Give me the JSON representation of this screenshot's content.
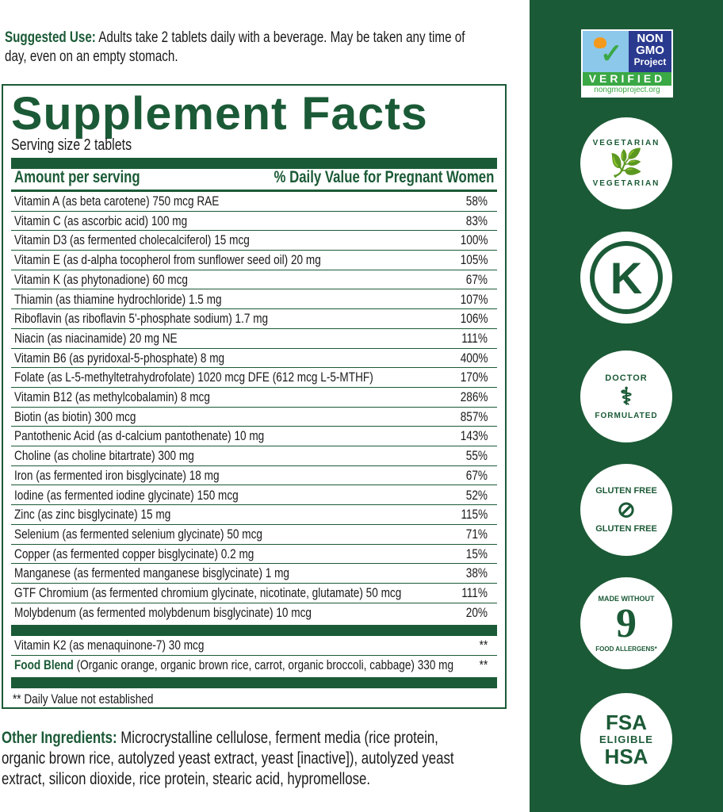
{
  "suggested_use": {
    "label": "Suggested Use:",
    "text1": "Adults take 2 tablets daily with a beverage. May be taken any time of",
    "text2": "day, even on an empty stomach."
  },
  "facts": {
    "title": "Supplement Facts",
    "serving": "Serving size 2 tablets",
    "col_amount": "Amount per serving",
    "col_dv": "% Daily Value for Pregnant Women",
    "rows": [
      [
        "Vitamin A (as beta carotene) 750 mcg RAE",
        "58%"
      ],
      [
        "Vitamin C (as ascorbic acid) 100 mg",
        "83%"
      ],
      [
        "Vitamin D3 (as fermented cholecalciferol) 15 mcg",
        "100%"
      ],
      [
        "Vitamin E (as d-alpha tocopherol from sunflower seed oil) 20 mg",
        "105%"
      ],
      [
        "Vitamin K (as phytonadione) 60 mcg",
        "67%"
      ],
      [
        "Thiamin (as thiamine hydrochloride) 1.5 mg",
        "107%"
      ],
      [
        "Riboflavin (as riboflavin 5'-phosphate sodium) 1.7 mg",
        "106%"
      ],
      [
        "Niacin (as niacinamide) 20 mg NE",
        "111%"
      ],
      [
        "Vitamin B6 (as pyridoxal-5-phosphate) 8 mg",
        "400%"
      ],
      [
        "Folate (as L-5-methyltetrahydrofolate) 1020 mcg DFE (612 mcg L-5-MTHF)",
        "170%"
      ],
      [
        "Vitamin B12 (as methylcobalamin) 8 mcg",
        "286%"
      ],
      [
        "Biotin (as biotin) 300 mcg",
        "857%"
      ],
      [
        "Pantothenic Acid (as d-calcium pantothenate) 10 mg",
        "143%"
      ],
      [
        "Choline (as choline bitartrate) 300 mg",
        "55%"
      ],
      [
        "Iron (as fermented iron bisglycinate) 18 mg",
        "67%"
      ],
      [
        "Iodine (as fermented iodine glycinate) 150 mcg",
        "52%"
      ],
      [
        "Zinc (as zinc bisglycinate) 15 mg",
        "115%"
      ],
      [
        "Selenium (as fermented selenium glycinate) 50 mcg",
        "71%"
      ],
      [
        "Copper (as fermented copper bisglycinate) 0.2 mg",
        "15%"
      ],
      [
        "Manganese (as fermented manganese bisglycinate) 1 mg",
        "38%"
      ],
      [
        "GTF Chromium (as fermented chromium glycinate, nicotinate, glutamate) 50 mcg",
        "111%"
      ],
      [
        "Molybdenum (as fermented molybdenum bisglycinate) 10 mcg",
        "20%"
      ]
    ],
    "k2": {
      "name": "Vitamin K2 (as menaquinone-7) 30 mcg",
      "dv": "**"
    },
    "blend": {
      "label": "Food Blend",
      "text": "(Organic orange, organic  brown rice, carrot, organic broccoli, cabbage) 330 mg",
      "dv": "**"
    },
    "footnote": "** Daily Value not established"
  },
  "other": {
    "label": "Other Ingredients:",
    "l1": "Microcrystalline cellulose, ferment media (rice protein,",
    "l2": "organic brown rice, autolyzed yeast extract, yeast  [inactive]), autolyzed yeast",
    "l3": "extract, silicon dioxide, rice protein, stearic acid, hypromellose."
  },
  "badges": {
    "gmo": {
      "l1": "NON",
      "l2": "GMO",
      "l3": "Project",
      "verified": "VERIFIED",
      "url": "nongmoproject.org"
    },
    "vegetarian": "VEGETARIAN",
    "kosher": "K",
    "doctor": [
      "DOCTOR",
      "FORMULATED"
    ],
    "gluten": [
      "GLUTEN FREE",
      "GLUTEN FREE"
    ],
    "allergens": {
      "top": "MADE WITHOUT",
      "num": "9",
      "bottom": "FOOD ALLERGENS*"
    },
    "fsa": {
      "l1": "FSA",
      "l2": "ELIGIBLE",
      "l3": "HSA"
    }
  },
  "colors": {
    "brand_green": "#1b5a36"
  }
}
